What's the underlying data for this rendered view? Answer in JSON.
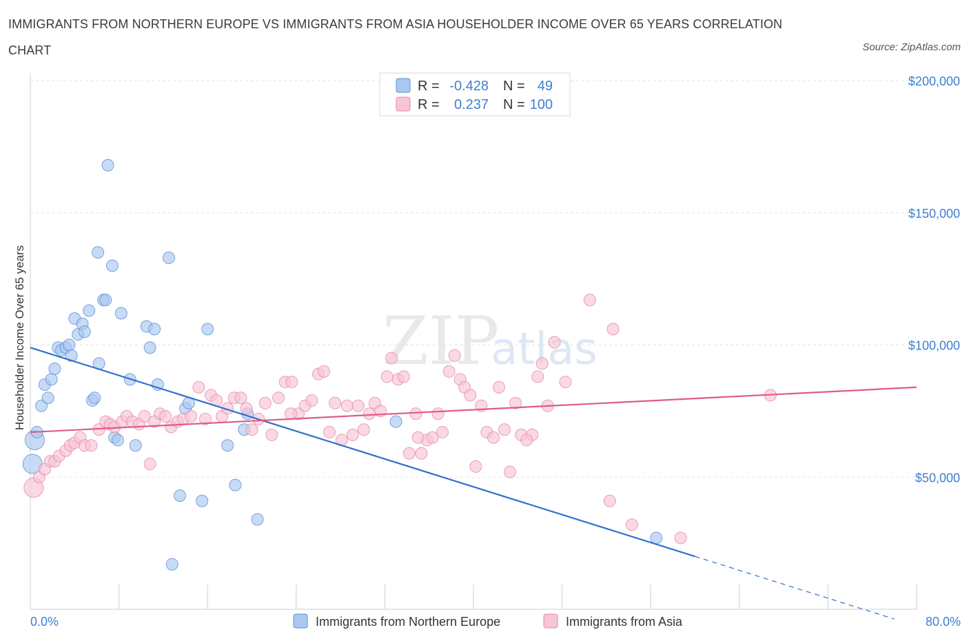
{
  "title": "IMMIGRANTS FROM NORTHERN EUROPE VS IMMIGRANTS FROM ASIA HOUSEHOLDER INCOME OVER 65 YEARS CORRELATION CHART",
  "source": "Source: ZipAtlas.com",
  "watermark": {
    "zip": "ZIP",
    "atlas": "atlas"
  },
  "colors": {
    "blue_fill": "#aac8f0",
    "blue_stroke": "#5b8fd6",
    "blue_line": "#2f6fd0",
    "pink_fill": "#f7c5d5",
    "pink_stroke": "#e58aa8",
    "pink_line": "#e05a8a",
    "grid": "#e3e3e3",
    "axis_text": "#3d7fd4"
  },
  "legend": {
    "rows": [
      {
        "r_label": "R =",
        "r_value": "-0.428",
        "n_label": "N =",
        "n_value": "49"
      },
      {
        "r_label": "R =",
        "r_value": "0.237",
        "n_label": "N =",
        "n_value": "100"
      }
    ]
  },
  "chart_data": {
    "type": "scatter",
    "xlabel": "",
    "ylabel": "Householder Income Over 65 years",
    "xlim": [
      0,
      80
    ],
    "ylim": [
      0,
      200000
    ],
    "x_tick_labels": [
      "0.0%",
      "80.0%"
    ],
    "y_ticks": [
      50000,
      100000,
      150000,
      200000
    ],
    "y_tick_labels": [
      "$50,000",
      "$100,000",
      "$150,000",
      "$200,000"
    ],
    "grid": true,
    "legend_position": "top-center",
    "series": [
      {
        "name": "Immigrants from Northern Europe",
        "color": "#aac8f0",
        "points": [
          [
            0.2,
            55000
          ],
          [
            0.4,
            64000
          ],
          [
            0.6,
            67000
          ],
          [
            1.0,
            77000
          ],
          [
            1.3,
            85000
          ],
          [
            1.6,
            80000
          ],
          [
            1.9,
            87000
          ],
          [
            2.2,
            91000
          ],
          [
            2.5,
            99000
          ],
          [
            2.8,
            98000
          ],
          [
            3.2,
            99000
          ],
          [
            3.5,
            100000
          ],
          [
            3.7,
            96000
          ],
          [
            4.0,
            110000
          ],
          [
            4.3,
            104000
          ],
          [
            4.7,
            108000
          ],
          [
            4.9,
            105000
          ],
          [
            5.3,
            113000
          ],
          [
            5.6,
            79000
          ],
          [
            5.8,
            80000
          ],
          [
            6.1,
            135000
          ],
          [
            6.2,
            93000
          ],
          [
            6.6,
            117000
          ],
          [
            6.8,
            117000
          ],
          [
            7.0,
            168000
          ],
          [
            7.4,
            130000
          ],
          [
            7.6,
            65000
          ],
          [
            7.9,
            64000
          ],
          [
            8.2,
            112000
          ],
          [
            9.0,
            87000
          ],
          [
            9.5,
            62000
          ],
          [
            10.5,
            107000
          ],
          [
            10.8,
            99000
          ],
          [
            11.2,
            106000
          ],
          [
            11.5,
            85000
          ],
          [
            12.5,
            133000
          ],
          [
            13.5,
            43000
          ],
          [
            14.0,
            76000
          ],
          [
            14.3,
            78000
          ],
          [
            15.5,
            41000
          ],
          [
            16.0,
            106000
          ],
          [
            17.8,
            62000
          ],
          [
            18.5,
            47000
          ],
          [
            19.3,
            68000
          ],
          [
            19.6,
            74000
          ],
          [
            20.5,
            34000
          ],
          [
            12.8,
            17000
          ],
          [
            33.0,
            71000
          ],
          [
            56.5,
            27000
          ]
        ]
      },
      {
        "name": "Immigrants from Asia",
        "color": "#f7c5d5",
        "points": [
          [
            0.3,
            46000
          ],
          [
            0.8,
            50000
          ],
          [
            1.3,
            53000
          ],
          [
            1.8,
            56000
          ],
          [
            2.2,
            56000
          ],
          [
            2.6,
            58000
          ],
          [
            3.2,
            60000
          ],
          [
            3.6,
            62000
          ],
          [
            4.0,
            63000
          ],
          [
            4.5,
            65000
          ],
          [
            4.9,
            62000
          ],
          [
            5.5,
            62000
          ],
          [
            6.2,
            68000
          ],
          [
            6.8,
            71000
          ],
          [
            7.2,
            70000
          ],
          [
            7.6,
            69000
          ],
          [
            8.3,
            71000
          ],
          [
            8.7,
            73000
          ],
          [
            9.2,
            71000
          ],
          [
            9.8,
            70000
          ],
          [
            10.3,
            73000
          ],
          [
            10.8,
            55000
          ],
          [
            11.2,
            71000
          ],
          [
            11.7,
            74000
          ],
          [
            12.2,
            73000
          ],
          [
            12.7,
            69000
          ],
          [
            13.3,
            71000
          ],
          [
            13.8,
            72000
          ],
          [
            14.5,
            73000
          ],
          [
            15.2,
            84000
          ],
          [
            15.8,
            72000
          ],
          [
            16.3,
            81000
          ],
          [
            16.8,
            79000
          ],
          [
            17.3,
            73000
          ],
          [
            17.8,
            76000
          ],
          [
            18.4,
            80000
          ],
          [
            19.0,
            80000
          ],
          [
            19.5,
            76000
          ],
          [
            20.0,
            68000
          ],
          [
            20.6,
            72000
          ],
          [
            21.2,
            78000
          ],
          [
            21.8,
            66000
          ],
          [
            22.4,
            80000
          ],
          [
            23.0,
            86000
          ],
          [
            23.6,
            86000
          ],
          [
            24.2,
            74000
          ],
          [
            24.8,
            77000
          ],
          [
            25.4,
            79000
          ],
          [
            26.0,
            89000
          ],
          [
            26.5,
            90000
          ],
          [
            27.0,
            67000
          ],
          [
            27.5,
            78000
          ],
          [
            28.1,
            64000
          ],
          [
            28.6,
            77000
          ],
          [
            29.1,
            66000
          ],
          [
            29.6,
            77000
          ],
          [
            30.1,
            68000
          ],
          [
            30.6,
            74000
          ],
          [
            31.1,
            78000
          ],
          [
            31.6,
            75000
          ],
          [
            32.2,
            88000
          ],
          [
            32.6,
            95000
          ],
          [
            33.2,
            87000
          ],
          [
            33.7,
            88000
          ],
          [
            34.2,
            59000
          ],
          [
            34.8,
            74000
          ],
          [
            35.3,
            59000
          ],
          [
            35.8,
            64000
          ],
          [
            36.3,
            65000
          ],
          [
            36.8,
            74000
          ],
          [
            37.2,
            67000
          ],
          [
            37.8,
            90000
          ],
          [
            38.3,
            96000
          ],
          [
            38.8,
            87000
          ],
          [
            39.2,
            84000
          ],
          [
            39.7,
            81000
          ],
          [
            40.2,
            54000
          ],
          [
            40.7,
            77000
          ],
          [
            41.2,
            67000
          ],
          [
            41.8,
            65000
          ],
          [
            42.3,
            84000
          ],
          [
            42.8,
            68000
          ],
          [
            43.3,
            52000
          ],
          [
            43.8,
            78000
          ],
          [
            44.3,
            66000
          ],
          [
            45.3,
            66000
          ],
          [
            45.8,
            88000
          ],
          [
            46.2,
            93000
          ],
          [
            46.7,
            77000
          ],
          [
            47.3,
            101000
          ],
          [
            48.3,
            86000
          ],
          [
            50.5,
            117000
          ],
          [
            52.3,
            41000
          ],
          [
            52.6,
            106000
          ],
          [
            54.3,
            32000
          ],
          [
            58.7,
            27000
          ],
          [
            66.8,
            81000
          ],
          [
            44.8,
            64000
          ],
          [
            35.0,
            65000
          ],
          [
            23.5,
            74000
          ]
        ]
      }
    ],
    "trend_lines": [
      {
        "series": "Immigrants from Northern Europe",
        "x": [
          0,
          60
        ],
        "y": [
          99000,
          20000
        ],
        "dashed_extension_to_x": 78
      },
      {
        "series": "Immigrants from Asia",
        "x": [
          0,
          80
        ],
        "y": [
          67000,
          84000
        ]
      }
    ]
  }
}
